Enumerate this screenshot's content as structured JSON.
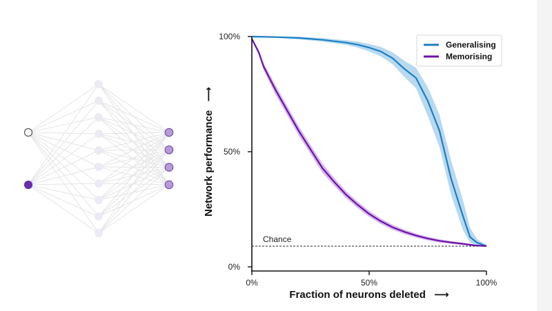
{
  "network": {
    "input_nodes": [
      {
        "style": "hollow"
      },
      {
        "style": "filled"
      }
    ],
    "hidden_node_count": 10,
    "output_node_count": 4,
    "colors": {
      "input_filled": "#6a2fa8",
      "input_stroke": "#555555",
      "hidden_fill": "#eceaf3",
      "output_fill": "#b79bd6",
      "output_stroke": "#6a3fa0",
      "edge": "#e4e4e4"
    }
  },
  "chart_data": {
    "type": "line",
    "xlabel": "Fraction of neurons deleted",
    "ylabel": "Network performance",
    "xlabel_arrow": "⟶",
    "ylabel_arrow": "⟶",
    "xlim": [
      0,
      100
    ],
    "ylim": [
      0,
      100
    ],
    "x_ticks": [
      {
        "value": 0,
        "label": "0%"
      },
      {
        "value": 50,
        "label": "50%"
      },
      {
        "value": 100,
        "label": "100%"
      }
    ],
    "y_ticks": [
      {
        "value": 0,
        "label": "0%"
      },
      {
        "value": 50,
        "label": "50%"
      },
      {
        "value": 100,
        "label": "100%"
      }
    ],
    "grid": false,
    "legend_position": "top-right",
    "chance": {
      "label": "Chance",
      "y": 9
    },
    "series": [
      {
        "name": "Generalising",
        "color": "#1a7fc4",
        "band_color": "#b8d9ef",
        "points": [
          [
            0,
            100
          ],
          [
            10,
            99.8
          ],
          [
            20,
            99.4
          ],
          [
            30,
            98.6
          ],
          [
            40,
            97.4
          ],
          [
            45,
            96.5
          ],
          [
            50,
            95.2
          ],
          [
            55,
            93.5
          ],
          [
            60,
            90.6
          ],
          [
            65,
            86
          ],
          [
            70,
            82
          ],
          [
            75,
            72
          ],
          [
            80,
            59
          ],
          [
            85,
            38
          ],
          [
            90,
            22
          ],
          [
            93,
            13
          ],
          [
            96,
            10.5
          ],
          [
            100,
            9
          ]
        ],
        "band_upper": [
          [
            0,
            100
          ],
          [
            10,
            100
          ],
          [
            20,
            99.9
          ],
          [
            30,
            99.3
          ],
          [
            40,
            98.4
          ],
          [
            45,
            97.8
          ],
          [
            50,
            96.8
          ],
          [
            55,
            95.5
          ],
          [
            60,
            93.2
          ],
          [
            65,
            89.5
          ],
          [
            70,
            86.5
          ],
          [
            75,
            78
          ],
          [
            80,
            66
          ],
          [
            85,
            46
          ],
          [
            90,
            29
          ],
          [
            93,
            17
          ],
          [
            96,
            12
          ],
          [
            100,
            9.5
          ]
        ],
        "band_lower": [
          [
            0,
            99.6
          ],
          [
            10,
            99.4
          ],
          [
            20,
            98.8
          ],
          [
            30,
            97.8
          ],
          [
            40,
            96.4
          ],
          [
            45,
            95.2
          ],
          [
            50,
            93.5
          ],
          [
            55,
            91.4
          ],
          [
            60,
            88
          ],
          [
            65,
            82.5
          ],
          [
            70,
            77.5
          ],
          [
            75,
            65.5
          ],
          [
            80,
            52
          ],
          [
            85,
            31
          ],
          [
            90,
            16
          ],
          [
            93,
            10.5
          ],
          [
            96,
            9.2
          ],
          [
            100,
            8.6
          ]
        ]
      },
      {
        "name": "Memorising",
        "color": "#6b12a8",
        "band_color": "#d7b8ec",
        "points": [
          [
            0,
            99
          ],
          [
            3,
            93
          ],
          [
            5,
            87
          ],
          [
            10,
            77
          ],
          [
            15,
            68
          ],
          [
            20,
            59
          ],
          [
            25,
            51
          ],
          [
            30,
            43
          ],
          [
            35,
            37
          ],
          [
            40,
            31.5
          ],
          [
            45,
            27
          ],
          [
            50,
            23
          ],
          [
            55,
            19.8
          ],
          [
            60,
            17.2
          ],
          [
            65,
            15.2
          ],
          [
            70,
            13.6
          ],
          [
            75,
            12.3
          ],
          [
            80,
            11.3
          ],
          [
            85,
            10.6
          ],
          [
            90,
            10
          ],
          [
            95,
            9.3
          ],
          [
            100,
            9
          ]
        ],
        "band_upper": [
          [
            0,
            99.5
          ],
          [
            3,
            94
          ],
          [
            5,
            88.5
          ],
          [
            10,
            79
          ],
          [
            15,
            70
          ],
          [
            20,
            61
          ],
          [
            25,
            53
          ],
          [
            30,
            45
          ],
          [
            35,
            38.7
          ],
          [
            40,
            33
          ],
          [
            45,
            28.4
          ],
          [
            50,
            24.3
          ],
          [
            55,
            21
          ],
          [
            60,
            18.3
          ],
          [
            65,
            16.2
          ],
          [
            70,
            14.5
          ],
          [
            75,
            13.1
          ],
          [
            80,
            12
          ],
          [
            85,
            11.2
          ],
          [
            90,
            10.5
          ],
          [
            95,
            9.7
          ],
          [
            100,
            9.3
          ]
        ],
        "band_lower": [
          [
            0,
            98.5
          ],
          [
            3,
            92
          ],
          [
            5,
            85.5
          ],
          [
            10,
            75
          ],
          [
            15,
            66
          ],
          [
            20,
            57
          ],
          [
            25,
            49
          ],
          [
            30,
            41
          ],
          [
            35,
            35.3
          ],
          [
            40,
            30
          ],
          [
            45,
            25.6
          ],
          [
            50,
            21.7
          ],
          [
            55,
            18.6
          ],
          [
            60,
            16.1
          ],
          [
            65,
            14.2
          ],
          [
            70,
            12.7
          ],
          [
            75,
            11.5
          ],
          [
            80,
            10.6
          ],
          [
            85,
            10
          ],
          [
            90,
            9.5
          ],
          [
            95,
            8.9
          ],
          [
            100,
            8.7
          ]
        ]
      }
    ]
  }
}
